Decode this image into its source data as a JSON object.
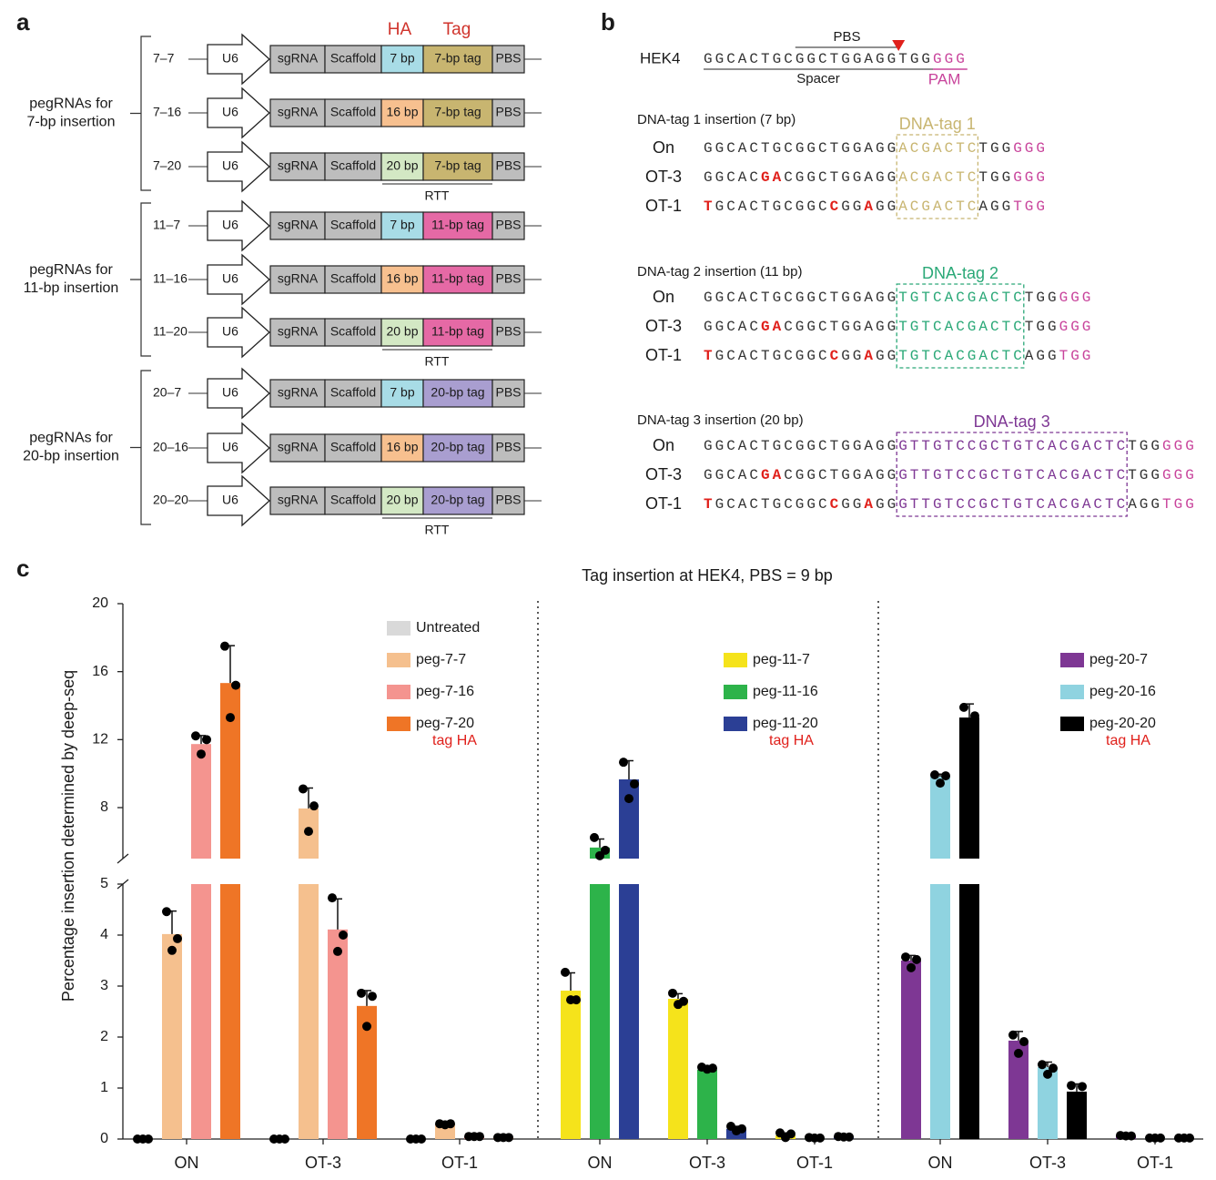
{
  "panel_a": {
    "label": "a",
    "column_headers": {
      "ha": "HA",
      "tag": "Tag"
    },
    "parts": {
      "promoter": "U6",
      "sgrna": "sgRNA",
      "scaffold": "Scaffold",
      "pbs": "PBS",
      "rtt": "RTT"
    },
    "groups": [
      {
        "title": [
          "pegRNAs for",
          "7-bp insertion"
        ],
        "rows": [
          {
            "name": "7–7",
            "ha": "7 bp",
            "ha_color": "#a8dce6",
            "tag": "7-bp tag",
            "tag_color": "#c8b570"
          },
          {
            "name": "7–16",
            "ha": "16 bp",
            "ha_color": "#f7c08f",
            "tag": "7-bp tag",
            "tag_color": "#c8b570"
          },
          {
            "name": "7–20",
            "ha": "20 bp",
            "ha_color": "#d3e8c4",
            "tag": "7-bp tag",
            "tag_color": "#c8b570"
          }
        ]
      },
      {
        "title": [
          "pegRNAs for",
          "11-bp insertion"
        ],
        "rows": [
          {
            "name": "11–7",
            "ha": "7 bp",
            "ha_color": "#a8dce6",
            "tag": "11-bp tag",
            "tag_color": "#e569a5"
          },
          {
            "name": "11–16",
            "ha": "16 bp",
            "ha_color": "#f7c08f",
            "tag": "11-bp tag",
            "tag_color": "#e569a5"
          },
          {
            "name": "11–20",
            "ha": "20 bp",
            "ha_color": "#d3e8c4",
            "tag": "11-bp tag",
            "tag_color": "#e569a5"
          }
        ]
      },
      {
        "title": [
          "pegRNAs for",
          "20-bp insertion"
        ],
        "rows": [
          {
            "name": "20–7",
            "ha": "7 bp",
            "ha_color": "#a8dce6",
            "tag": "20-bp tag",
            "tag_color": "#a99ed0"
          },
          {
            "name": "20–16",
            "ha": "16 bp",
            "ha_color": "#f7c08f",
            "tag": "20-bp tag",
            "tag_color": "#a99ed0"
          },
          {
            "name": "20–20",
            "ha": "20 bp",
            "ha_color": "#d3e8c4",
            "tag": "20-bp tag",
            "tag_color": "#a99ed0"
          }
        ]
      }
    ]
  },
  "panel_b": {
    "label": "b",
    "pam_color": "#c8439b",
    "mutation_color": "#e0201b",
    "reference": {
      "name": "HEK4",
      "spacer_seq": "GGCACTGCGGCTGGAGGTGG",
      "pam_seq": "GGG",
      "pbs_label": "PBS",
      "spacer_label": "Spacer",
      "pam_label": "PAM"
    },
    "blocks": [
      {
        "title": "DNA-tag 1 insertion (7 bp)",
        "tag_label": "DNA-tag 1",
        "color": "#c8b570",
        "rows": [
          {
            "label": "On",
            "segments": [
              {
                "kind": "seq",
                "text": "GGCACTGCGGCTGGAGG"
              },
              {
                "kind": "tag",
                "text": "ACGACTC"
              },
              {
                "kind": "seq",
                "text": "TGG"
              },
              {
                "kind": "pam",
                "text": "GGG"
              }
            ]
          },
          {
            "label": "OT-3",
            "segments": [
              {
                "kind": "seq",
                "text": "GGCAC"
              },
              {
                "kind": "mut",
                "text": "GA"
              },
              {
                "kind": "seq",
                "text": "CGGCTGGAGG"
              },
              {
                "kind": "tag",
                "text": "ACGACTC"
              },
              {
                "kind": "seq",
                "text": "TGG"
              },
              {
                "kind": "pam",
                "text": "GGG"
              }
            ]
          },
          {
            "label": "OT-1",
            "segments": [
              {
                "kind": "mut",
                "text": "T"
              },
              {
                "kind": "seq",
                "text": "GCACTGCGGC"
              },
              {
                "kind": "mut",
                "text": "C"
              },
              {
                "kind": "seq",
                "text": "GG"
              },
              {
                "kind": "mut",
                "text": "A"
              },
              {
                "kind": "seq",
                "text": "GG"
              },
              {
                "kind": "tag",
                "text": "ACGACTC"
              },
              {
                "kind": "seq",
                "text": "AGG"
              },
              {
                "kind": "pam",
                "text": "TGG"
              }
            ]
          }
        ]
      },
      {
        "title": "DNA-tag 2 insertion (11 bp)",
        "tag_label": "DNA-tag 2",
        "color": "#2aa877",
        "rows": [
          {
            "label": "On",
            "segments": [
              {
                "kind": "seq",
                "text": "GGCACTGCGGCTGGAGG"
              },
              {
                "kind": "tag",
                "text": "TGTCACGACTC"
              },
              {
                "kind": "seq",
                "text": "TGG"
              },
              {
                "kind": "pam",
                "text": "GGG"
              }
            ]
          },
          {
            "label": "OT-3",
            "segments": [
              {
                "kind": "seq",
                "text": "GGCAC"
              },
              {
                "kind": "mut",
                "text": "GA"
              },
              {
                "kind": "seq",
                "text": "CGGCTGGAGG"
              },
              {
                "kind": "tag",
                "text": "TGTCACGACTC"
              },
              {
                "kind": "seq",
                "text": "TGG"
              },
              {
                "kind": "pam",
                "text": "GGG"
              }
            ]
          },
          {
            "label": "OT-1",
            "segments": [
              {
                "kind": "mut",
                "text": "T"
              },
              {
                "kind": "seq",
                "text": "GCACTGCGGC"
              },
              {
                "kind": "mut",
                "text": "C"
              },
              {
                "kind": "seq",
                "text": "GG"
              },
              {
                "kind": "mut",
                "text": "A"
              },
              {
                "kind": "seq",
                "text": "GG"
              },
              {
                "kind": "tag",
                "text": "TGTCACGACTC"
              },
              {
                "kind": "seq",
                "text": "AGG"
              },
              {
                "kind": "pam",
                "text": "TGG"
              }
            ]
          }
        ]
      },
      {
        "title": "DNA-tag 3 insertion (20 bp)",
        "tag_label": "DNA-tag 3",
        "color": "#7e3794",
        "rows": [
          {
            "label": "On",
            "segments": [
              {
                "kind": "seq",
                "text": "GGCACTGCGGCTGGAGG"
              },
              {
                "kind": "tag",
                "text": "GTTGTCCGCTGTCACGACTC"
              },
              {
                "kind": "seq",
                "text": "TGG"
              },
              {
                "kind": "pam",
                "text": "GGG"
              }
            ]
          },
          {
            "label": "OT-3",
            "segments": [
              {
                "kind": "seq",
                "text": "GGCAC"
              },
              {
                "kind": "mut",
                "text": "GA"
              },
              {
                "kind": "seq",
                "text": "CGGCTGGAGG"
              },
              {
                "kind": "tag",
                "text": "GTTGTCCGCTGTCACGACTC"
              },
              {
                "kind": "seq",
                "text": "TGG"
              },
              {
                "kind": "pam",
                "text": "GGG"
              }
            ]
          },
          {
            "label": "OT-1",
            "segments": [
              {
                "kind": "mut",
                "text": "T"
              },
              {
                "kind": "seq",
                "text": "GCACTGCGGC"
              },
              {
                "kind": "mut",
                "text": "C"
              },
              {
                "kind": "seq",
                "text": "GG"
              },
              {
                "kind": "mut",
                "text": "A"
              },
              {
                "kind": "seq",
                "text": "GG"
              },
              {
                "kind": "tag",
                "text": "GTTGTCCGCTGTCACGACTC"
              },
              {
                "kind": "seq",
                "text": "AGG"
              },
              {
                "kind": "pam",
                "text": "TGG"
              }
            ]
          }
        ]
      }
    ]
  },
  "panel_c": {
    "label": "c"
  },
  "chart_data": {
    "type": "bar",
    "title": "Tag insertion at HEK4, PBS = 9 bp",
    "y_label": "Percentage insertion determined by deep-seq",
    "segments": [
      {
        "ylim": [
          0,
          5
        ],
        "yticks": [
          0,
          1,
          2,
          3,
          4,
          5
        ]
      },
      {
        "ylim": [
          5,
          20
        ],
        "yticks": [
          8,
          12,
          16,
          20
        ]
      }
    ],
    "panels": [
      {
        "categories": [
          "ON",
          "OT-3",
          "OT-1"
        ],
        "legend_note": "tag HA",
        "series": [
          {
            "name": "Untreated",
            "color": "#d9d9d9",
            "values": [
              0,
              0,
              0
            ],
            "errors": [
              0,
              0,
              0
            ],
            "points": [
              [
                0,
                0,
                0
              ],
              [
                0,
                0,
                0
              ],
              [
                0,
                0,
                0
              ]
            ]
          },
          {
            "name": "peg-7-7",
            "color": "#f5c08e",
            "values": [
              4.02,
              7.95,
              0.29
            ],
            "errors": [
              0.45,
              1.2,
              0.02
            ],
            "points": [
              [
                4.46,
                3.93,
                3.7
              ],
              [
                9.1,
                8.1,
                6.6
              ],
              [
                0.3,
                0.3,
                0.28
              ]
            ]
          },
          {
            "name": "peg-7-16",
            "color": "#f4948f",
            "values": [
              11.74,
              4.11,
              0.05
            ],
            "errors": [
              0.5,
              0.6,
              0.01
            ],
            "points": [
              [
                12.22,
                12.0,
                11.15
              ],
              [
                4.73,
                4.0,
                3.68
              ],
              [
                0.05,
                0.05,
                0.05
              ]
            ]
          },
          {
            "name": "peg-7-20",
            "color": "#ef7526",
            "values": [
              15.33,
              2.61,
              0.03
            ],
            "errors": [
              2.2,
              0.3,
              0.01
            ],
            "points": [
              [
                17.5,
                15.2,
                13.3
              ],
              [
                2.86,
                2.8,
                2.21
              ],
              [
                0.03,
                0.03,
                0.03
              ]
            ]
          }
        ]
      },
      {
        "categories": [
          "ON",
          "OT-3",
          "OT-1"
        ],
        "legend_note": "tag HA",
        "series": [
          {
            "name": "peg-11-7",
            "color": "#f5e31b",
            "values": [
              2.91,
              2.75,
              0.07
            ],
            "errors": [
              0.35,
              0.1,
              0.05
            ],
            "points": [
              [
                3.27,
                2.73,
                2.73
              ],
              [
                2.86,
                2.7,
                2.64
              ],
              [
                0.12,
                0.1,
                0.03
              ]
            ]
          },
          {
            "name": "peg-11-16",
            "color": "#2db34a",
            "values": [
              5.65,
              1.36,
              0.02
            ],
            "errors": [
              0.5,
              0.05,
              0.01
            ],
            "points": [
              [
                6.24,
                5.49,
                5.17
              ],
              [
                1.41,
                1.39,
                1.37
              ],
              [
                0.03,
                0.02,
                0.02
              ]
            ]
          },
          {
            "name": "peg-11-20",
            "color": "#2b3f95",
            "values": [
              9.66,
              0.2,
              0.04
            ],
            "errors": [
              1.1,
              0.05,
              0.01
            ],
            "points": [
              [
                10.67,
                9.39,
                8.53
              ],
              [
                0.25,
                0.2,
                0.16
              ],
              [
                0.05,
                0.04,
                0.04
              ]
            ]
          }
        ]
      },
      {
        "categories": [
          "ON",
          "OT-3",
          "OT-1"
        ],
        "legend_note": "tag HA",
        "series": [
          {
            "name": "peg-20-7",
            "color": "#7e3794",
            "values": [
              3.5,
              1.93,
              0.06
            ],
            "errors": [
              0.1,
              0.18,
              0.01
            ],
            "points": [
              [
                3.57,
                3.52,
                3.36
              ],
              [
                2.04,
                1.91,
                1.68
              ],
              [
                0.07,
                0.06,
                0.06
              ]
            ]
          },
          {
            "name": "peg-20-16",
            "color": "#8fd3e0",
            "values": [
              9.82,
              1.41,
              0.02
            ],
            "errors": [
              0.15,
              0.1,
              0.01
            ],
            "points": [
              [
                9.93,
                9.87,
                9.44
              ],
              [
                1.46,
                1.39,
                1.27
              ],
              [
                0.02,
                0.02,
                0.02
              ]
            ]
          },
          {
            "name": "peg-20-20",
            "color": "#000000",
            "values": [
              13.3,
              0.93,
              0.02
            ],
            "errors": [
              0.8,
              0.15,
              0.01
            ],
            "points": [
              [
                13.9,
                13.4,
                12.6
              ],
              [
                1.05,
                1.03,
                0.72
              ],
              [
                0.02,
                0.02,
                0.02
              ]
            ]
          }
        ]
      }
    ]
  }
}
